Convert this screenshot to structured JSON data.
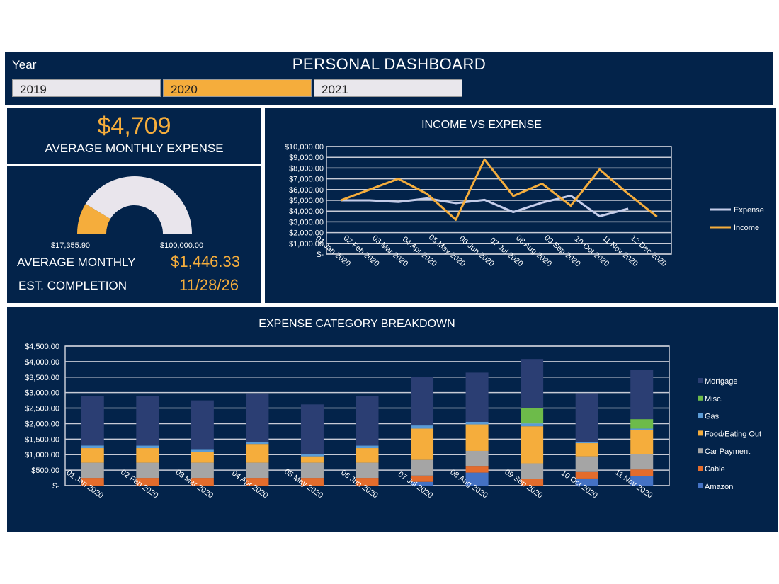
{
  "header": {
    "year_label": "Year",
    "title": "PERSONAL DASHBOARD",
    "years": [
      "2019",
      "2020",
      "2021"
    ],
    "selected_year": "2020"
  },
  "kpi": {
    "value": "$4,709",
    "label": "AVERAGE MONTHLY EXPENSE"
  },
  "gauge": {
    "current": "$17,355.90",
    "target": "$100,000.00",
    "fraction": 0.1736,
    "avg_label": "AVERAGE MONTHLY",
    "avg_value": "$1,446.33",
    "completion_label": "EST. COMPLETION",
    "completion_value": "11/28/26"
  },
  "colors": {
    "bg": "#03234a",
    "accent": "#f5ad3c",
    "gauge_rest": "#e9e5ec"
  },
  "chart_data": [
    {
      "type": "line",
      "title": "INCOME VS EXPENSE",
      "ylim": [
        0,
        10000
      ],
      "grid": true,
      "legend": "right",
      "yticks": [
        "$-",
        "$1,000.00",
        "$2,000.00",
        "$3,000.00",
        "$4,000.00",
        "$5,000.00",
        "$6,000.00",
        "$7,000.00",
        "$8,000.00",
        "$9,000.00",
        "$10,000.00"
      ],
      "categories": [
        "01 Jan 2020",
        "02 Feb 2020",
        "03 Mar 2020",
        "04 Apr 2020",
        "05 May 2020",
        "06 Jun 2020",
        "07 Jul 2020",
        "08 Aug 2020",
        "09 Sep 2020",
        "10 Oct 2020",
        "11 Nov 2020",
        "12 Dec 2020"
      ],
      "series": [
        {
          "name": "Expense",
          "color": "#c5cdea",
          "values": [
            5000,
            5000,
            4850,
            5170,
            4740,
            5040,
            3910,
            4780,
            5430,
            3520,
            4220,
            null
          ]
        },
        {
          "name": "Income",
          "color": "#f5ad3c",
          "values": [
            5000,
            6000,
            7000,
            5600,
            3200,
            8800,
            5400,
            6550,
            4500,
            7870,
            5600,
            3480
          ]
        }
      ]
    },
    {
      "type": "bar",
      "stacked": true,
      "title": "EXPENSE CATEGORY BREAKDOWN",
      "ylim": [
        0,
        4500
      ],
      "grid": true,
      "legend": "right",
      "yticks": [
        "$-",
        "$500.00",
        "$1,000.00",
        "$1,500.00",
        "$2,000.00",
        "$2,500.00",
        "$3,000.00",
        "$3,500.00",
        "$4,000.00",
        "$4,500.00"
      ],
      "categories": [
        "01 Jan 2020",
        "02 Feb 2020",
        "03 Mar 2020",
        "04 Apr 2020",
        "05 May 2020",
        "06 Jun 2020",
        "07 Jul 2020",
        "08 Aug 2020",
        "09 Sep 2020",
        "10 Oct 2020",
        "11 Nov 2020"
      ],
      "series": [
        {
          "name": "Amazon",
          "color": "#4472c4",
          "values": [
            0,
            0,
            0,
            0,
            0,
            0,
            120,
            420,
            0,
            230,
            300
          ]
        },
        {
          "name": "Cable",
          "color": "#e46c2c",
          "values": [
            250,
            250,
            250,
            250,
            250,
            250,
            205,
            195,
            220,
            210,
            220
          ]
        },
        {
          "name": "Car Payment",
          "color": "#a5a5a5",
          "values": [
            490,
            490,
            490,
            490,
            490,
            490,
            505,
            505,
            500,
            505,
            495
          ]
        },
        {
          "name": "Food/Eating Out",
          "color": "#f5ad3c",
          "values": [
            470,
            470,
            335,
            605,
            205,
            470,
            1010,
            855,
            1195,
            425,
            780
          ]
        },
        {
          "name": "Gas",
          "color": "#5b9bd5",
          "values": [
            85,
            80,
            105,
            60,
            70,
            80,
            100,
            85,
            90,
            40,
            45
          ]
        },
        {
          "name": "Misc.",
          "color": "#6dbb4a",
          "values": [
            0,
            0,
            0,
            0,
            0,
            0,
            0,
            0,
            490,
            0,
            305
          ]
        },
        {
          "name": "Mortgage",
          "color": "#2b3e73",
          "values": [
            1585,
            1590,
            1570,
            1570,
            1605,
            1590,
            1570,
            1585,
            1590,
            1570,
            1590
          ]
        }
      ]
    }
  ]
}
